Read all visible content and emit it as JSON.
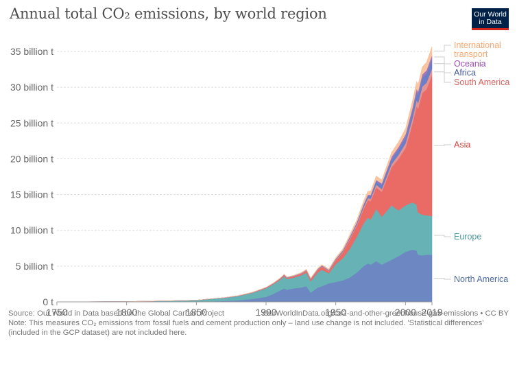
{
  "header": {
    "title": "Annual total CO₂ emissions, by world region",
    "logo_line1": "Our World",
    "logo_line2": "in Data"
  },
  "footer": {
    "source": "Source: Our World in Data based on the Global Carbon Project",
    "url_license": "OurWorldInData.org/co2-and-other-greenhouse-gas-emissions • CC BY",
    "note_line1": "Note: This measures CO₂ emissions from fossil fuels and cement production only – land use change is not included. 'Statistical differences'",
    "note_line2": "(included in the GCP dataset) are not included here."
  },
  "chart_data": {
    "type": "area",
    "stacked": true,
    "title": "Annual total CO₂ emissions, by world region",
    "xlabel": "",
    "ylabel": "",
    "xlim": [
      1750,
      2019
    ],
    "ylim": [
      0,
      35
    ],
    "grid": true,
    "legend": "right (inline labels)",
    "x_ticks": [
      1750,
      1800,
      1850,
      1900,
      1950,
      2000,
      2019
    ],
    "y_ticks": [
      {
        "value": 0,
        "label": "0 t"
      },
      {
        "value": 5,
        "label": "5 billion t"
      },
      {
        "value": 10,
        "label": "10 billion t"
      },
      {
        "value": 15,
        "label": "15 billion t"
      },
      {
        "value": 20,
        "label": "20 billion t"
      },
      {
        "value": 25,
        "label": "25 billion t"
      },
      {
        "value": 30,
        "label": "30 billion t"
      },
      {
        "value": 35,
        "label": "35 billion t"
      }
    ],
    "x": [
      1750,
      1800,
      1850,
      1870,
      1880,
      1890,
      1900,
      1905,
      1910,
      1913,
      1915,
      1920,
      1925,
      1929,
      1932,
      1937,
      1940,
      1945,
      1950,
      1955,
      1960,
      1965,
      1970,
      1973,
      1975,
      1979,
      1983,
      1990,
      1995,
      2000,
      2005,
      2008,
      2009,
      2012,
      2015,
      2019
    ],
    "series": [
      {
        "name": "North America",
        "color": "#6d87c2",
        "values": [
          0,
          0.01,
          0.03,
          0.12,
          0.22,
          0.4,
          0.7,
          1.1,
          1.6,
          1.9,
          1.7,
          1.9,
          2.0,
          2.2,
          1.3,
          2.0,
          2.2,
          2.6,
          2.8,
          3.0,
          3.4,
          4.1,
          5.0,
          5.4,
          5.2,
          5.7,
          5.2,
          5.9,
          6.4,
          7.0,
          7.3,
          7.2,
          6.6,
          6.5,
          6.6,
          6.6
        ]
      },
      {
        "name": "Europe",
        "color": "#67b2b4",
        "values": [
          0.01,
          0.03,
          0.2,
          0.45,
          0.6,
          0.85,
          1.2,
          1.35,
          1.5,
          1.7,
          1.5,
          1.5,
          1.7,
          1.9,
          1.6,
          2.1,
          2.3,
          1.4,
          2.5,
          3.1,
          4.0,
          5.0,
          6.0,
          6.4,
          6.3,
          7.3,
          6.7,
          7.6,
          6.4,
          6.5,
          6.6,
          6.4,
          5.9,
          5.7,
          5.5,
          5.4
        ]
      },
      {
        "name": "Asia",
        "color": "#ea6a66",
        "values": [
          0,
          0,
          0.01,
          0.02,
          0.03,
          0.05,
          0.07,
          0.09,
          0.12,
          0.15,
          0.15,
          0.18,
          0.2,
          0.25,
          0.25,
          0.35,
          0.45,
          0.3,
          0.5,
          0.8,
          1.3,
          1.5,
          2.0,
          2.4,
          2.6,
          3.0,
          3.5,
          5.3,
          7.2,
          8.0,
          11.0,
          13.8,
          14.5,
          17.0,
          17.6,
          19.7
        ]
      },
      {
        "name": "South America",
        "color": "#e49491",
        "values": [
          0,
          0,
          0,
          0,
          0.01,
          0.01,
          0.02,
          0.02,
          0.03,
          0.03,
          0.03,
          0.04,
          0.05,
          0.06,
          0.05,
          0.06,
          0.07,
          0.08,
          0.1,
          0.13,
          0.17,
          0.2,
          0.26,
          0.3,
          0.32,
          0.38,
          0.37,
          0.45,
          0.55,
          0.65,
          0.75,
          0.82,
          0.8,
          0.9,
          0.92,
          0.9
        ]
      },
      {
        "name": "Africa",
        "color": "#6c7fc6",
        "values": [
          0,
          0,
          0,
          0,
          0,
          0.01,
          0.02,
          0.02,
          0.03,
          0.03,
          0.03,
          0.04,
          0.04,
          0.05,
          0.05,
          0.06,
          0.07,
          0.08,
          0.1,
          0.13,
          0.16,
          0.2,
          0.3,
          0.35,
          0.4,
          0.5,
          0.6,
          0.72,
          0.8,
          0.9,
          1.05,
          1.15,
          1.15,
          1.25,
          1.3,
          1.4
        ]
      },
      {
        "name": "Oceania",
        "color": "#a577b7",
        "values": [
          0,
          0,
          0,
          0,
          0,
          0,
          0.01,
          0.01,
          0.01,
          0.02,
          0.02,
          0.02,
          0.02,
          0.02,
          0.02,
          0.03,
          0.03,
          0.03,
          0.04,
          0.05,
          0.07,
          0.09,
          0.12,
          0.14,
          0.15,
          0.17,
          0.2,
          0.3,
          0.32,
          0.37,
          0.42,
          0.44,
          0.44,
          0.45,
          0.45,
          0.46
        ]
      },
      {
        "name": "International transport",
        "color": "#f8c5a0",
        "values": [
          0,
          0,
          0,
          0,
          0.01,
          0.02,
          0.03,
          0.04,
          0.05,
          0.06,
          0.05,
          0.06,
          0.08,
          0.09,
          0.08,
          0.1,
          0.1,
          0.11,
          0.15,
          0.2,
          0.27,
          0.35,
          0.45,
          0.5,
          0.5,
          0.55,
          0.5,
          0.6,
          0.7,
          0.8,
          0.95,
          1.0,
          0.98,
          1.05,
          1.1,
          1.2
        ]
      }
    ]
  }
}
